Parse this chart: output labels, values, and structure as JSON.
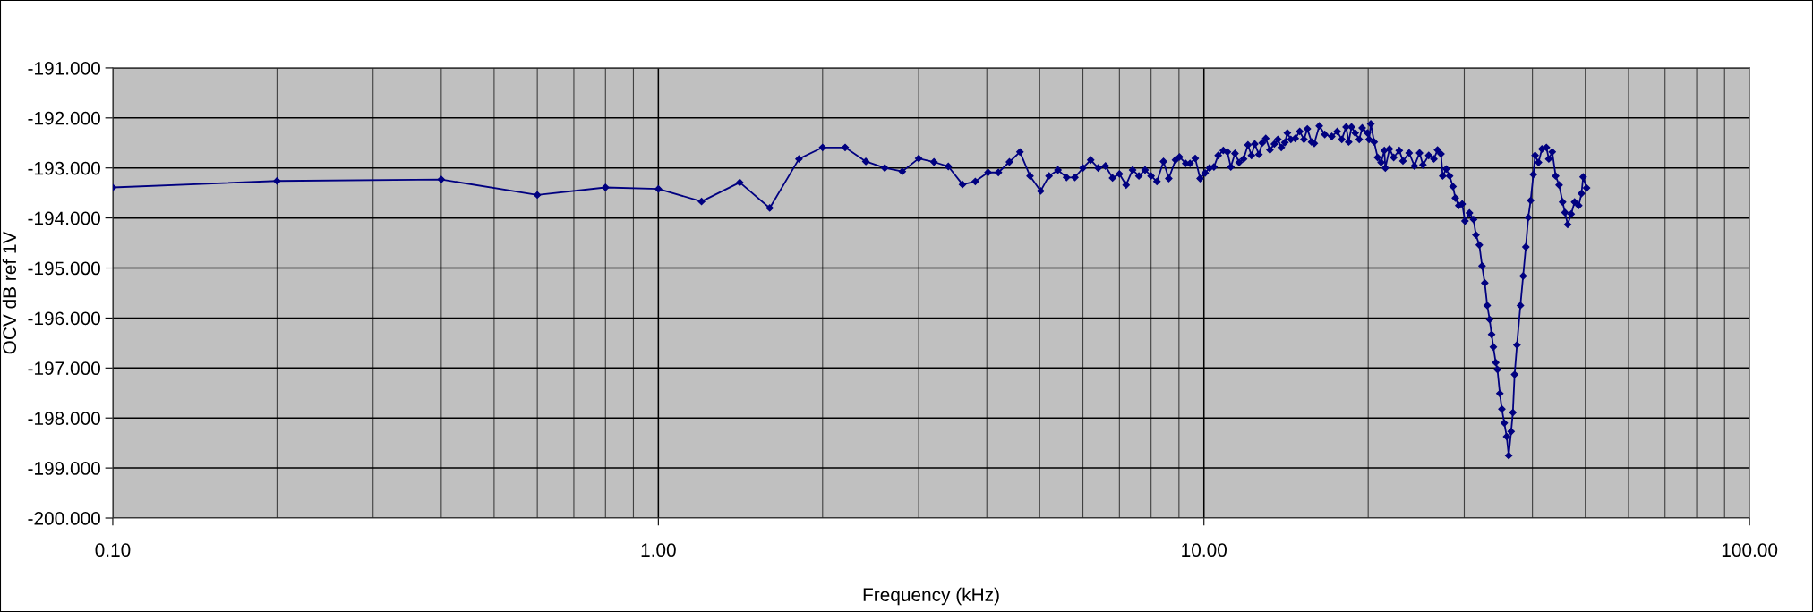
{
  "chart_data": {
    "type": "line",
    "xlabel": "Frequency (kHz)",
    "ylabel": "OCV dB ref 1V",
    "log": "x",
    "grid": true,
    "marker": "diamond",
    "line_style": "solid",
    "xlim": [
      0.1,
      100
    ],
    "xticks": [
      {
        "value": 0.1,
        "label": "0.10"
      },
      {
        "value": 1,
        "label": "1.00"
      },
      {
        "value": 10,
        "label": "10.00"
      },
      {
        "value": 100,
        "label": "100.00"
      }
    ],
    "ylim": [
      -200,
      -191
    ],
    "yticks": [
      {
        "value": -200,
        "label": "-200.000"
      },
      {
        "value": -199,
        "label": "-199.000"
      },
      {
        "value": -198,
        "label": "-198.000"
      },
      {
        "value": -197,
        "label": "-197.000"
      },
      {
        "value": -196,
        "label": "-196.000"
      },
      {
        "value": -195,
        "label": "-195.000"
      },
      {
        "value": -194,
        "label": "-194.000"
      },
      {
        "value": -193,
        "label": "-193.000"
      },
      {
        "value": -192,
        "label": "-192.000"
      },
      {
        "value": -191,
        "label": "-191.000"
      }
    ],
    "series": [
      {
        "color": "#000080",
        "x": [
          0.1,
          0.2,
          0.4,
          0.6,
          0.8,
          1.0,
          1.2,
          1.41,
          1.6,
          1.81,
          2.0,
          2.2,
          2.4,
          2.6,
          2.8,
          3.0,
          3.2,
          3.4,
          3.61,
          3.81,
          4.02,
          4.2,
          4.4,
          4.6,
          4.8,
          5.02,
          5.2,
          5.4,
          5.6,
          5.8,
          6.0,
          6.2,
          6.4,
          6.6,
          6.8,
          7.0,
          7.2,
          7.4,
          7.6,
          7.8,
          8.0,
          8.2,
          8.43,
          8.62,
          8.87,
          9.02,
          9.26,
          9.43,
          9.64,
          9.84,
          10.05,
          10.24,
          10.43,
          10.62,
          10.85,
          11.04,
          11.2,
          11.4,
          11.6,
          11.82,
          12.04,
          12.22,
          12.39,
          12.61,
          12.79,
          12.98,
          13.21,
          13.46,
          13.66,
          13.86,
          14.07,
          14.22,
          14.43,
          14.7,
          14.98,
          15.25,
          15.47,
          15.75,
          15.93,
          16.27,
          16.65,
          17.15,
          17.55,
          17.89,
          18.22,
          18.42,
          18.64,
          18.93,
          19.26,
          19.5,
          19.94,
          20.07,
          20.22,
          20.51,
          20.81,
          21.12,
          21.41,
          21.5,
          21.88,
          22.27,
          22.8,
          23.16,
          23.77,
          24.31,
          24.84,
          25.2,
          25.82,
          26.39,
          26.8,
          27.19,
          27.39,
          27.8,
          28.2,
          28.6,
          28.89,
          29.31,
          29.74,
          30.09,
          30.66,
          31.2,
          31.51,
          31.97,
          32.34,
          32.71,
          33.05,
          33.39,
          33.67,
          33.92,
          34.26,
          34.51,
          34.86,
          35.16,
          35.52,
          35.88,
          36.19,
          36.56,
          36.83,
          37.1,
          37.47,
          38.02,
          38.46,
          38.9,
          39.3,
          39.7,
          40.16,
          40.45,
          41.04,
          41.64,
          42.43,
          42.86,
          43.49,
          44.12,
          44.77,
          45.43,
          45.89,
          46.42,
          47.1,
          47.79,
          48.63,
          49.2,
          49.55,
          50.27
        ],
        "values": [
          -193.39,
          -193.26,
          -193.23,
          -193.54,
          -193.39,
          -193.42,
          -193.67,
          -193.29,
          -193.8,
          -192.82,
          -192.59,
          -192.59,
          -192.87,
          -193.0,
          -193.07,
          -192.81,
          -192.88,
          -192.97,
          -193.33,
          -193.27,
          -193.09,
          -193.09,
          -192.88,
          -192.68,
          -193.16,
          -193.46,
          -193.16,
          -193.04,
          -193.19,
          -193.19,
          -193.0,
          -192.84,
          -193.0,
          -192.96,
          -193.2,
          -193.12,
          -193.34,
          -193.04,
          -193.16,
          -193.04,
          -193.16,
          -193.27,
          -192.87,
          -193.21,
          -192.84,
          -192.78,
          -192.91,
          -192.91,
          -192.81,
          -193.21,
          -193.1,
          -193.0,
          -192.98,
          -192.75,
          -192.65,
          -192.68,
          -192.98,
          -192.71,
          -192.89,
          -192.82,
          -192.54,
          -192.75,
          -192.52,
          -192.73,
          -192.5,
          -192.41,
          -192.64,
          -192.52,
          -192.43,
          -192.59,
          -192.49,
          -192.3,
          -192.43,
          -192.41,
          -192.27,
          -192.43,
          -192.22,
          -192.48,
          -192.51,
          -192.16,
          -192.33,
          -192.37,
          -192.27,
          -192.43,
          -192.18,
          -192.48,
          -192.18,
          -192.3,
          -192.43,
          -192.2,
          -192.3,
          -192.43,
          -192.12,
          -192.48,
          -192.79,
          -192.89,
          -192.65,
          -193.0,
          -192.62,
          -192.79,
          -192.65,
          -192.86,
          -192.7,
          -192.96,
          -192.7,
          -192.94,
          -192.75,
          -192.82,
          -192.64,
          -192.72,
          -193.16,
          -193.02,
          -193.16,
          -193.37,
          -193.6,
          -193.75,
          -193.72,
          -194.06,
          -193.9,
          -194.03,
          -194.34,
          -194.54,
          -194.96,
          -195.3,
          -195.75,
          -196.03,
          -196.33,
          -196.58,
          -196.89,
          -197.03,
          -197.51,
          -197.82,
          -198.1,
          -198.37,
          -198.75,
          -198.27,
          -197.89,
          -197.13,
          -196.54,
          -195.75,
          -195.16,
          -194.58,
          -193.99,
          -193.65,
          -193.13,
          -192.75,
          -192.89,
          -192.62,
          -192.59,
          -192.82,
          -192.68,
          -193.16,
          -193.34,
          -193.68,
          -193.89,
          -194.13,
          -193.92,
          -193.68,
          -193.75,
          -193.51,
          -193.18,
          -193.4
        ]
      }
    ]
  }
}
